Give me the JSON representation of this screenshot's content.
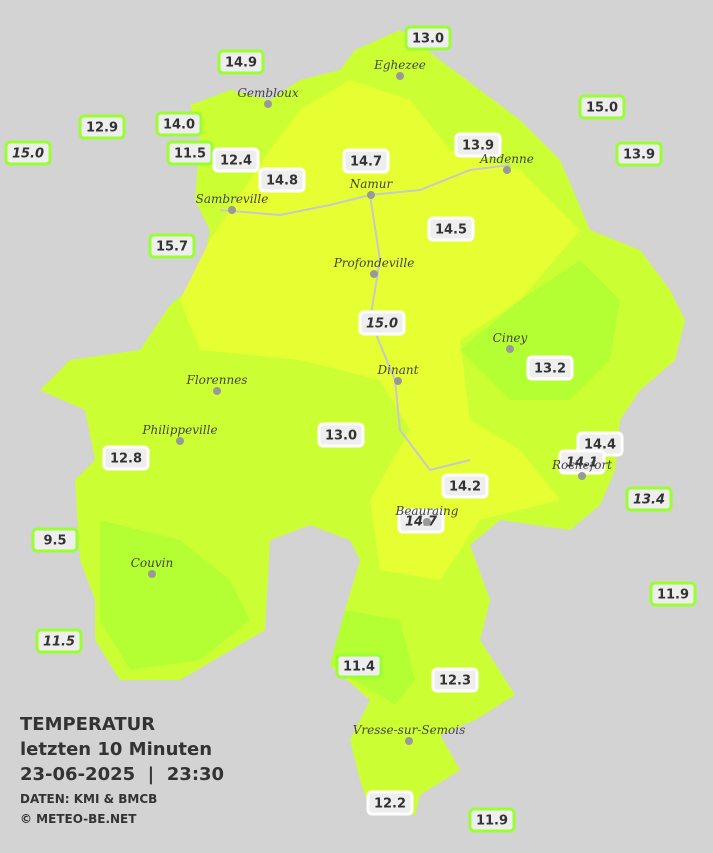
{
  "header": {
    "title": "TEMPERATUR",
    "subtitle": "letzten 10 Minuten",
    "datetime": "23-06-2025  |  23:30",
    "source": "DATEN: KMI & BMCB",
    "copyright": "© METEO-BE.NET"
  },
  "cities": [
    "Eghezee",
    "Gembloux",
    "Andenne",
    "Namur",
    "Sambreville",
    "Profondeville",
    "Ciney",
    "Dinant",
    "Florennes",
    "Philippeville",
    "Rochefort",
    "Beauraing",
    "Couvin",
    "Vresse-sur-Semois"
  ],
  "stations": [
    {
      "label": "13.0",
      "italic": false
    },
    {
      "label": "14.9",
      "italic": false
    },
    {
      "label": "12.9",
      "italic": false
    },
    {
      "label": "14.0",
      "italic": false
    },
    {
      "label": "15.0",
      "italic": true
    },
    {
      "label": "11.5",
      "italic": false
    },
    {
      "label": "12.4",
      "italic": false
    },
    {
      "label": "15.0",
      "italic": false
    },
    {
      "label": "13.9",
      "italic": false
    },
    {
      "label": "13.9",
      "italic": false
    },
    {
      "label": "14.7",
      "italic": false
    },
    {
      "label": "14.8",
      "italic": false
    },
    {
      "label": "14.5",
      "italic": false
    },
    {
      "label": "15.7",
      "italic": false
    },
    {
      "label": "15.0",
      "italic": true
    },
    {
      "label": "13.2",
      "italic": false
    },
    {
      "label": "13.0",
      "italic": false
    },
    {
      "label": "12.8",
      "italic": false
    },
    {
      "label": "14.4",
      "italic": false
    },
    {
      "label": "14.1",
      "italic": true
    },
    {
      "label": "14.2",
      "italic": false
    },
    {
      "label": "13.4",
      "italic": true
    },
    {
      "label": "14.7",
      "italic": true
    },
    {
      "label": "9.5",
      "italic": false
    },
    {
      "label": "11.9",
      "italic": false
    },
    {
      "label": "11.5",
      "italic": true
    },
    {
      "label": "11.4",
      "italic": false
    },
    {
      "label": "12.3",
      "italic": false
    },
    {
      "label": "12.2",
      "italic": false
    },
    {
      "label": "11.9",
      "italic": false
    }
  ]
}
